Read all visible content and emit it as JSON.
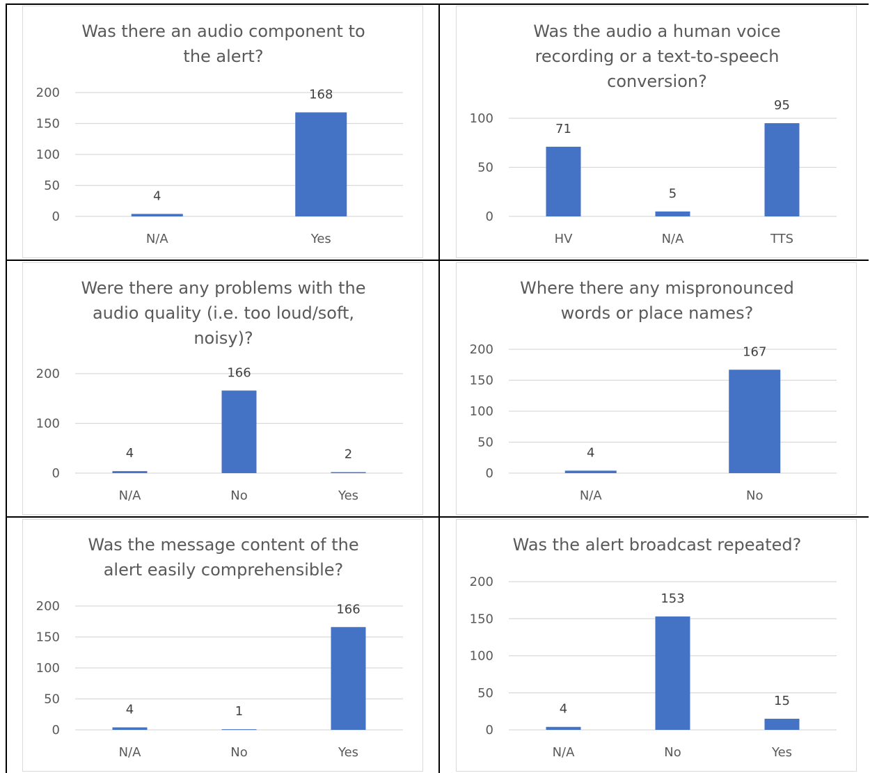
{
  "colors": {
    "bar": "#4472c4",
    "gridline": "#d9d9d9",
    "text": "#595959",
    "border": "#000000"
  },
  "chart_data": [
    {
      "type": "bar",
      "title": "Was there an audio component to the alert?",
      "title_lines": [
        "Was there an audio component to",
        "the alert?"
      ],
      "categories": [
        "N/A",
        "Yes"
      ],
      "values": [
        4,
        168
      ],
      "value_labels": [
        "4",
        "168"
      ],
      "ylim": [
        0,
        200
      ],
      "yticks": [
        0,
        50,
        100,
        150,
        200
      ],
      "grid": true,
      "xlabel": "",
      "ylabel": ""
    },
    {
      "type": "bar",
      "title": "Was the audio a human voice recording or a text-to-speech conversion?",
      "title_lines": [
        "Was the audio a human voice",
        "recording or a text-to-speech",
        "conversion?"
      ],
      "categories": [
        "HV",
        "N/A",
        "TTS"
      ],
      "values": [
        71,
        5,
        95
      ],
      "value_labels": [
        "71",
        "5",
        "95"
      ],
      "ylim": [
        0,
        100
      ],
      "yticks": [
        0,
        50,
        100
      ],
      "grid": true,
      "xlabel": "",
      "ylabel": ""
    },
    {
      "type": "bar",
      "title": "Were there any problems with the audio quality (i.e. too loud/soft, noisy)?",
      "title_lines": [
        "Were there any problems with the",
        "audio quality (i.e. too loud/soft,",
        "noisy)?"
      ],
      "categories": [
        "N/A",
        "No",
        "Yes"
      ],
      "values": [
        4,
        166,
        2
      ],
      "value_labels": [
        "4",
        "166",
        "2"
      ],
      "ylim": [
        0,
        200
      ],
      "yticks": [
        0,
        100,
        200
      ],
      "grid": true,
      "xlabel": "",
      "ylabel": ""
    },
    {
      "type": "bar",
      "title": "Where there any mispronounced words or place names?",
      "title_lines": [
        "Where there any mispronounced",
        "words or place names?"
      ],
      "categories": [
        "N/A",
        "No"
      ],
      "values": [
        4,
        167
      ],
      "value_labels": [
        "4",
        "167"
      ],
      "ylim": [
        0,
        200
      ],
      "yticks": [
        0,
        50,
        100,
        150,
        200
      ],
      "grid": true,
      "xlabel": "",
      "ylabel": ""
    },
    {
      "type": "bar",
      "title": "Was the message content of the alert easily comprehensible?",
      "title_lines": [
        "Was the message content of the",
        "alert easily comprehensible?"
      ],
      "categories": [
        "N/A",
        "No",
        "Yes"
      ],
      "values": [
        4,
        1,
        166
      ],
      "value_labels": [
        "4",
        "1",
        "166"
      ],
      "ylim": [
        0,
        200
      ],
      "yticks": [
        0,
        50,
        100,
        150,
        200
      ],
      "grid": true,
      "xlabel": "",
      "ylabel": ""
    },
    {
      "type": "bar",
      "title": "Was the alert broadcast repeated?",
      "title_lines": [
        "Was the alert broadcast repeated?"
      ],
      "categories": [
        "N/A",
        "No",
        "Yes"
      ],
      "values": [
        4,
        153,
        15
      ],
      "value_labels": [
        "4",
        "153",
        "15"
      ],
      "ylim": [
        0,
        200
      ],
      "yticks": [
        0,
        50,
        100,
        150,
        200
      ],
      "grid": true,
      "xlabel": "",
      "ylabel": ""
    }
  ]
}
